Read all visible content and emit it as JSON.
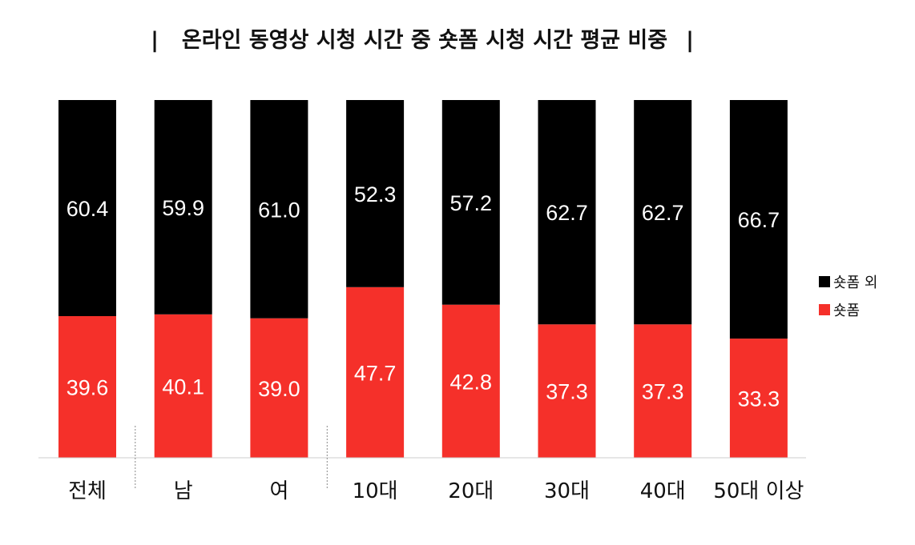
{
  "chart_data": {
    "type": "bar",
    "stacked": true,
    "title": "온라인 동영상 시청 시간 중 숏폼 시청 시간 평균 비중",
    "title_marker": "|",
    "categories": [
      "전체",
      "남",
      "여",
      "10대",
      "20대",
      "30대",
      "40대",
      "50대 이상"
    ],
    "series": [
      {
        "name": "숏폼",
        "color": "#f5302a",
        "values": [
          39.6,
          40.1,
          39.0,
          47.7,
          42.8,
          37.3,
          37.3,
          33.3
        ]
      },
      {
        "name": "숏폼 외",
        "color": "#000000",
        "values": [
          60.4,
          59.9,
          61.0,
          52.3,
          57.2,
          62.7,
          62.7,
          66.7
        ]
      }
    ],
    "ylim": [
      0,
      100
    ],
    "xlabel": "",
    "ylabel": "",
    "grid": false,
    "legend": "right",
    "group_separators_after": [
      "전체",
      "여"
    ]
  }
}
